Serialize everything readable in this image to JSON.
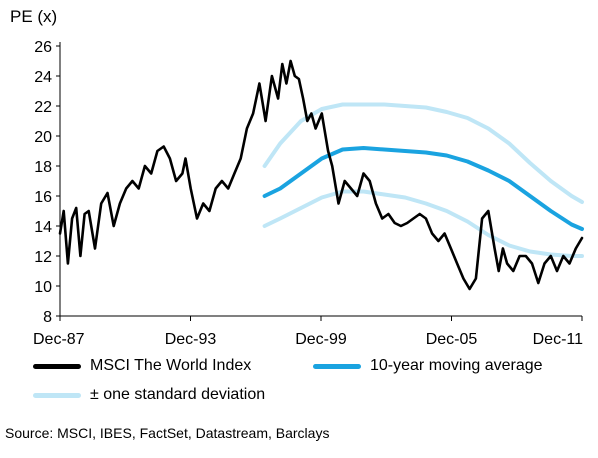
{
  "chart_data": {
    "type": "line",
    "title": "",
    "ylabel": "PE (x)",
    "xlabel": "",
    "ylim": [
      8,
      26
    ],
    "yticks": [
      8,
      10,
      12,
      14,
      16,
      18,
      20,
      22,
      24,
      26
    ],
    "xticks": [
      "Dec-87",
      "Dec-93",
      "Dec-99",
      "Dec-05",
      "Dec-11"
    ],
    "xrange": [
      1987.92,
      2013.0
    ],
    "grid": false,
    "legend_position": "bottom",
    "series": [
      {
        "name": "MSCI The World Index",
        "color": "#000000",
        "x": [
          1987.92,
          1988.1,
          1988.3,
          1988.5,
          1988.7,
          1988.9,
          1989.1,
          1989.3,
          1989.6,
          1989.9,
          1990.2,
          1990.5,
          1990.8,
          1991.1,
          1991.4,
          1991.7,
          1992.0,
          1992.3,
          1992.6,
          1992.9,
          1993.2,
          1993.5,
          1993.8,
          1993.95,
          1994.2,
          1994.5,
          1994.8,
          1995.1,
          1995.4,
          1995.7,
          1996.0,
          1996.3,
          1996.6,
          1996.9,
          1997.2,
          1997.5,
          1997.8,
          1998.1,
          1998.4,
          1998.6,
          1998.8,
          1999.0,
          1999.2,
          1999.4,
          1999.6,
          1999.8,
          2000.0,
          2000.2,
          2000.5,
          2000.8,
          2001.0,
          2001.3,
          2001.6,
          2001.9,
          2002.2,
          2002.5,
          2002.8,
          2003.1,
          2003.4,
          2003.7,
          2004.0,
          2004.3,
          2004.6,
          2004.9,
          2005.2,
          2005.5,
          2005.8,
          2006.1,
          2006.4,
          2006.7,
          2007.0,
          2007.3,
          2007.6,
          2007.9,
          2008.2,
          2008.5,
          2008.8,
          2009.0,
          2009.2,
          2009.4,
          2009.7,
          2010.0,
          2010.3,
          2010.6,
          2010.9,
          2011.2,
          2011.5,
          2011.8,
          2012.1,
          2012.4,
          2012.7,
          2013.0
        ],
        "values": [
          13.5,
          15.0,
          11.5,
          14.5,
          15.2,
          12.0,
          14.8,
          15.0,
          12.5,
          15.5,
          16.2,
          14.0,
          15.5,
          16.5,
          17.0,
          16.5,
          18.0,
          17.5,
          19.0,
          19.3,
          18.5,
          17.0,
          17.5,
          18.5,
          16.5,
          14.5,
          15.5,
          15.0,
          16.5,
          17.0,
          16.5,
          17.5,
          18.5,
          20.5,
          21.5,
          23.5,
          21.0,
          24.0,
          22.5,
          24.8,
          23.5,
          25.0,
          24.0,
          23.8,
          22.5,
          21.0,
          21.5,
          20.5,
          21.5,
          19.0,
          18.0,
          15.5,
          17.0,
          16.5,
          16.0,
          17.5,
          17.0,
          15.5,
          14.5,
          14.8,
          14.2,
          14.0,
          14.2,
          14.5,
          14.8,
          14.5,
          13.5,
          13.0,
          13.5,
          12.5,
          11.5,
          10.5,
          9.8,
          10.5,
          14.5,
          15.0,
          12.5,
          11.0,
          12.5,
          11.5,
          11.0,
          12.0,
          12.0,
          11.5,
          10.2,
          11.5,
          12.0,
          11.0,
          12.0,
          11.5,
          12.5,
          13.2
        ]
      },
      {
        "name": "10-year moving average",
        "color": "#1aa3e0",
        "x": [
          1997.75,
          1998.5,
          1999.5,
          2000.5,
          2001.5,
          2002.5,
          2003.5,
          2004.5,
          2005.5,
          2006.5,
          2007.5,
          2008.5,
          2009.5,
          2010.5,
          2011.5,
          2012.5,
          2013.0
        ],
        "values": [
          16.0,
          16.5,
          17.5,
          18.5,
          19.1,
          19.2,
          19.1,
          19.0,
          18.9,
          18.7,
          18.3,
          17.7,
          17.0,
          16.0,
          15.0,
          14.1,
          13.8
        ]
      },
      {
        "name": "± one standard deviation",
        "color": "#bfe6f6",
        "bands": [
          {
            "x": [
              1997.75,
              1998.5,
              1999.5,
              2000.5,
              2001.5,
              2002.5,
              2003.5,
              2004.5,
              2005.5,
              2006.5,
              2007.5,
              2008.5,
              2009.5,
              2010.5,
              2011.5,
              2012.5,
              2013.0
            ],
            "values": [
              18.0,
              19.5,
              21.0,
              21.8,
              22.1,
              22.1,
              22.1,
              22.0,
              21.9,
              21.6,
              21.2,
              20.5,
              19.5,
              18.2,
              17.0,
              16.0,
              15.6
            ]
          },
          {
            "x": [
              1997.75,
              1998.5,
              1999.5,
              2000.5,
              2001.5,
              2002.5,
              2003.5,
              2004.5,
              2005.5,
              2006.5,
              2007.5,
              2008.5,
              2009.5,
              2010.5,
              2011.5,
              2012.5,
              2013.0
            ],
            "values": [
              14.0,
              14.5,
              15.2,
              15.9,
              16.3,
              16.3,
              16.1,
              15.9,
              15.5,
              15.0,
              14.3,
              13.4,
              12.7,
              12.3,
              12.1,
              12.0,
              12.0
            ]
          }
        ]
      }
    ],
    "source": "Source: MSCI, IBES, FactSet, Datastream, Barclays"
  }
}
